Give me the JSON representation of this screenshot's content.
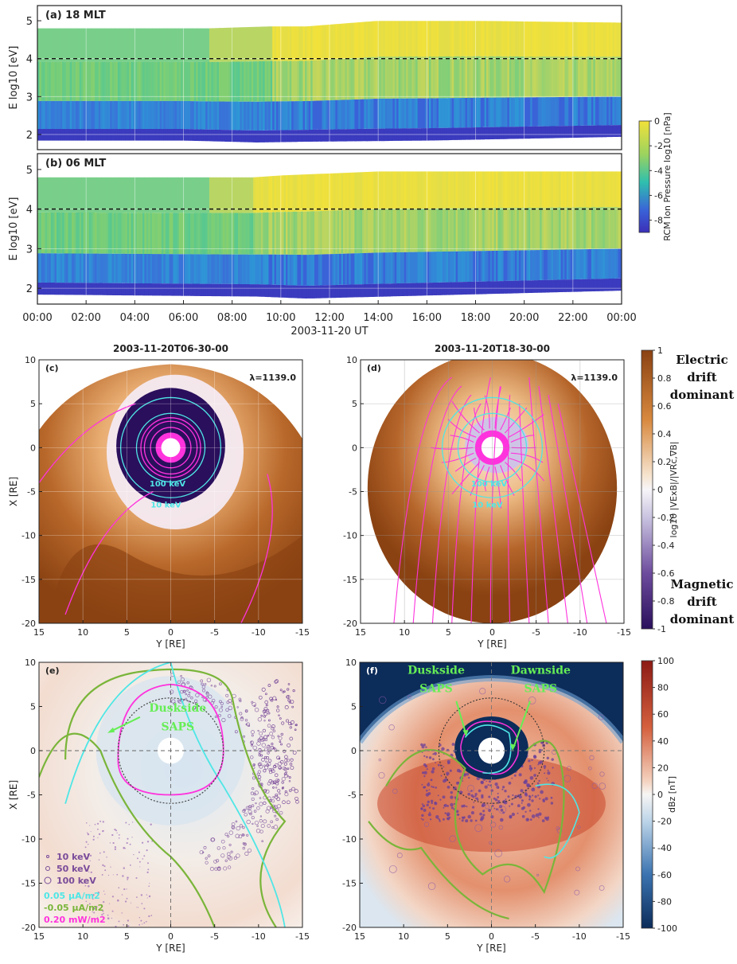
{
  "colors": {
    "ion_pressure": [
      "#3b2fb8",
      "#3a63d8",
      "#2e97d6",
      "#2fbfae",
      "#6fd17a",
      "#c0d75a",
      "#f2e13a"
    ],
    "drift_ratio": [
      "#2a0f5c",
      "#5a3a8c",
      "#b6b0d8",
      "#f4f2f6",
      "#f2cfa8",
      "#d8893f",
      "#8a4212"
    ],
    "dbz": [
      "#0c2c5a",
      "#3b73b0",
      "#a8c9e3",
      "#f7f6f4",
      "#f2b89a",
      "#d4603e",
      "#8c1a14"
    ],
    "pink": "#ff33dd",
    "cyan": "#4fe6e6",
    "green": "#7ab53a",
    "light_green": "#66ee55"
  },
  "chart_data": [
    {
      "type": "heatmap",
      "panel": "a",
      "label": "(a) 18 MLT",
      "ylabel": "E log10 [eV]",
      "ylim": [
        1.6,
        5.4
      ],
      "yticks": [
        2,
        3,
        4,
        5
      ],
      "xlim": [
        0,
        24
      ],
      "dashed_line_y": 4,
      "upper_energy_boundary": [
        [
          0,
          4.8
        ],
        [
          4,
          4.8
        ],
        [
          7,
          4.8
        ],
        [
          9.5,
          4.85
        ],
        [
          11,
          4.85
        ],
        [
          12,
          4.9
        ],
        [
          14,
          5.0
        ],
        [
          18,
          5.0
        ],
        [
          20,
          4.98
        ],
        [
          24,
          4.95
        ]
      ],
      "lower_energy_boundary": [
        [
          0,
          1.85
        ],
        [
          6,
          1.85
        ],
        [
          9,
          1.8
        ],
        [
          11,
          1.82
        ],
        [
          16,
          1.85
        ],
        [
          24,
          1.95
        ]
      ]
    },
    {
      "type": "heatmap",
      "panel": "b",
      "label": "(b) 06 MLT",
      "ylabel": "E log10 [eV]",
      "ylim": [
        1.6,
        5.4
      ],
      "yticks": [
        2,
        3,
        4,
        5
      ],
      "xlim": [
        0,
        24
      ],
      "dashed_line_y": 4,
      "xticks": [
        "00:00",
        "02:00",
        "04:00",
        "06:00",
        "08:00",
        "10:00",
        "12:00",
        "14:00",
        "16:00",
        "18:00",
        "20:00",
        "22:00",
        "00:00"
      ],
      "xlabel": "2003-11-20 UT",
      "colorbar": {
        "label": "RCM Ion Pressure log10 [nPa]",
        "ticks": [
          "0",
          "-2",
          "-4",
          "-6",
          "-8"
        ],
        "range": [
          -9,
          0
        ]
      },
      "upper_energy_boundary": [
        [
          0,
          4.8
        ],
        [
          8.8,
          4.8
        ],
        [
          10,
          4.85
        ],
        [
          12,
          4.9
        ],
        [
          14,
          4.95
        ],
        [
          24,
          4.95
        ]
      ],
      "lower_energy_boundary": [
        [
          0,
          1.85
        ],
        [
          9,
          1.8
        ],
        [
          11,
          1.75
        ],
        [
          24,
          1.95
        ]
      ]
    },
    {
      "type": "heatmap",
      "panel": "c",
      "label": "(c)",
      "title": "2003-11-20T06-30-00",
      "annotation": "λ=1139.0",
      "xlabel": "Y [RE]",
      "ylabel": "X [RE]",
      "xlim": [
        15,
        -15
      ],
      "ylim": [
        -20,
        10
      ],
      "xticks": [
        "15",
        "10",
        "5",
        "0",
        "-5",
        "-10",
        "-15"
      ],
      "yticks": [
        "10",
        "5",
        "0",
        "-5",
        "-10",
        "-15",
        "-20"
      ],
      "contour_labels": [
        "100 keV",
        "10 keV"
      ],
      "circle_radii": {
        "10 keV": 5.7,
        "100 keV": 3.9
      }
    },
    {
      "type": "heatmap",
      "panel": "d",
      "label": "(d)",
      "title": "2003-11-20T18-30-00",
      "annotation": "λ=1139.0",
      "xlabel": "Y [RE]",
      "xlim": [
        15,
        -15
      ],
      "ylim": [
        -20,
        10
      ],
      "xticks": [
        "15",
        "10",
        "5",
        "0",
        "-5",
        "-10",
        "-15"
      ],
      "yticks": [
        "10",
        "5",
        "0",
        "-5",
        "-10",
        "-15",
        "-20"
      ],
      "contour_labels": [
        "100 keV",
        "10 keV"
      ],
      "colorbar": {
        "label": "log10 |VExB|/|VRc,∇B|",
        "ticks": [
          "1",
          "0.8",
          "0.6",
          "0.4",
          "0.2",
          "0",
          "-0.2",
          "-0.4",
          "-0.6",
          "-0.8",
          "-1"
        ],
        "range": [
          -1,
          1
        ]
      },
      "side_labels": {
        "top": [
          "Electric",
          "drift",
          "dominant"
        ],
        "bottom": [
          "Magnetic",
          "drift",
          "dominant"
        ]
      }
    },
    {
      "type": "scatter",
      "panel": "e",
      "label": "(e)",
      "xlabel": "Y [RE]",
      "ylabel": "X [RE]",
      "xlim": [
        15,
        -15
      ],
      "ylim": [
        -20,
        10
      ],
      "xticks": [
        "15",
        "10",
        "5",
        "0",
        "-5",
        "-10",
        "-15"
      ],
      "yticks": [
        "10",
        "5",
        "0",
        "-5",
        "-10",
        "-15",
        "-20"
      ],
      "annotation": [
        "Duskside",
        "SAPS"
      ],
      "legend": [
        {
          "label": "10 keV",
          "marker": "small-circle"
        },
        {
          "label": "50 keV",
          "marker": "medium-circle"
        },
        {
          "label": "100 keV",
          "marker": "large-circle"
        },
        {
          "label": "0.05 μA/m2",
          "color": "cyan"
        },
        {
          "label": "-0.05 μA/m2",
          "color": "green"
        },
        {
          "label": "0.20 mW/m2",
          "color": "pink"
        }
      ]
    },
    {
      "type": "heatmap",
      "panel": "f",
      "label": "(f)",
      "xlabel": "Y [RE]",
      "xlim": [
        15,
        -15
      ],
      "ylim": [
        -20,
        10
      ],
      "xticks": [
        "15",
        "10",
        "5",
        "0",
        "-5",
        "-10",
        "-15"
      ],
      "yticks": [
        "10",
        "5",
        "0",
        "-5",
        "-10",
        "-15",
        "-20"
      ],
      "annotations": [
        [
          "Duskside",
          "SAPS"
        ],
        [
          "Dawnside",
          "SAPS"
        ]
      ],
      "colorbar": {
        "label": "dBz [nT]",
        "ticks": [
          "100",
          "80",
          "60",
          "40",
          "20",
          "0",
          "-20",
          "-40",
          "-60",
          "-80",
          "-100"
        ],
        "range": [
          -100,
          100
        ]
      }
    }
  ]
}
